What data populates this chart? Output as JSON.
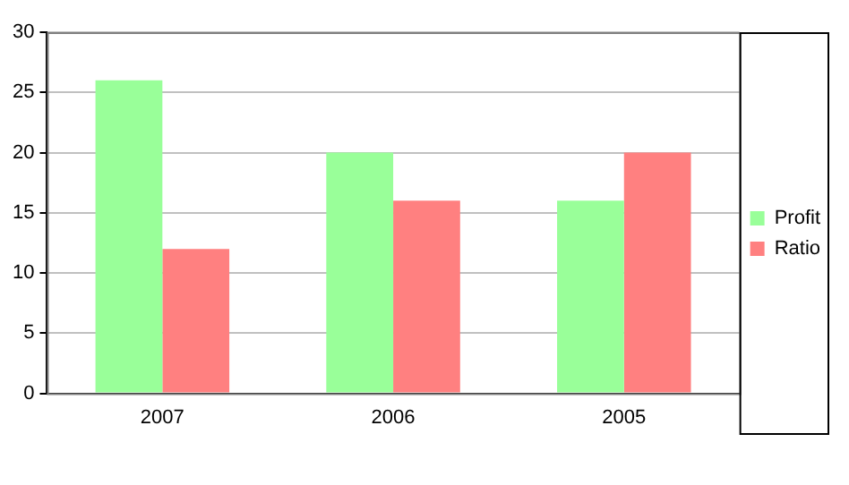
{
  "chart_data": {
    "type": "bar",
    "categories": [
      "2007",
      "2006",
      "2005"
    ],
    "series": [
      {
        "name": "Profit",
        "color": "#99ff99",
        "values": [
          26,
          20,
          16
        ]
      },
      {
        "name": "Ratio",
        "color": "#ff8080",
        "values": [
          12,
          16,
          20
        ]
      }
    ],
    "ylim": [
      0,
      30
    ],
    "yticks": [
      0,
      5,
      10,
      15,
      20,
      25,
      30
    ],
    "grid": "y",
    "legend": "right"
  }
}
